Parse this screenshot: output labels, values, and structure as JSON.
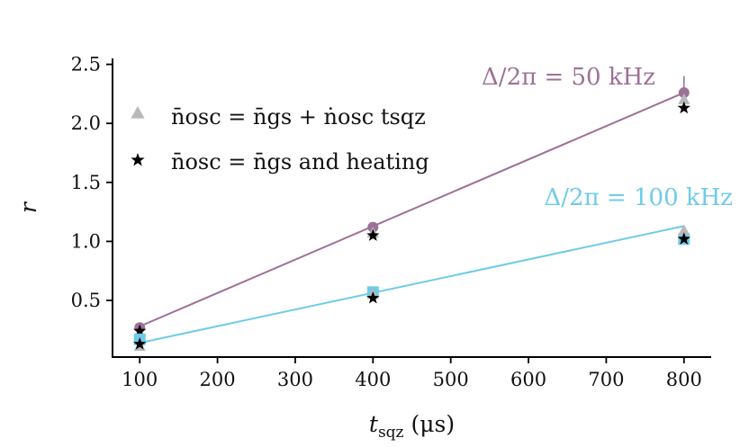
{
  "chart_data": {
    "type": "scatter",
    "xlabel_main": "t",
    "xlabel_sub": "sqz",
    "xlabel_unit": "(μs)",
    "ylabel": "r",
    "xlim": [
      65,
      835
    ],
    "ylim": [
      0.02,
      2.55
    ],
    "xticks": [
      100,
      200,
      300,
      400,
      500,
      600,
      700,
      800
    ],
    "yticks": [
      0.5,
      1.0,
      1.5,
      2.0,
      2.5
    ],
    "ytick_labels": [
      "0.5",
      "1.0",
      "1.5",
      "2.0",
      "2.5"
    ],
    "grid": false,
    "legend_position": "upper-left",
    "legend": [
      {
        "marker": "triangle",
        "color": "#b9b9b9",
        "text": "n̄osc = n̄gs + ṅosc tsqz"
      },
      {
        "marker": "star",
        "color": "#000000",
        "text": "n̄osc = n̄gs and heating"
      }
    ],
    "series": [
      {
        "detuning_label": "Δ/2π = 50 kHz",
        "color": "#9c7196",
        "marker": "circle",
        "x": [
          100,
          400,
          800
        ],
        "y": [
          0.27,
          1.12,
          2.26
        ],
        "yerr": [
          0.02,
          0.02,
          0.14
        ],
        "fit": {
          "x": [
            100,
            800
          ],
          "y": [
            0.28,
            2.26
          ]
        },
        "triangle_y": [
          0.19,
          1.07,
          2.2
        ],
        "star_y": [
          0.24,
          1.05,
          2.13
        ]
      },
      {
        "detuning_label": "Δ/2π = 100 kHz",
        "color": "#6fcbe8",
        "marker": "square",
        "x": [
          100,
          400,
          800
        ],
        "y": [
          0.17,
          0.57,
          1.02
        ],
        "yerr": [
          0.01,
          0.01,
          0.01
        ],
        "fit": {
          "x": [
            100,
            800
          ],
          "y": [
            0.14,
            1.13
          ]
        },
        "triangle_y": [
          0.11,
          0.55,
          1.09
        ],
        "star_y": [
          0.13,
          0.52,
          1.02
        ]
      }
    ]
  }
}
